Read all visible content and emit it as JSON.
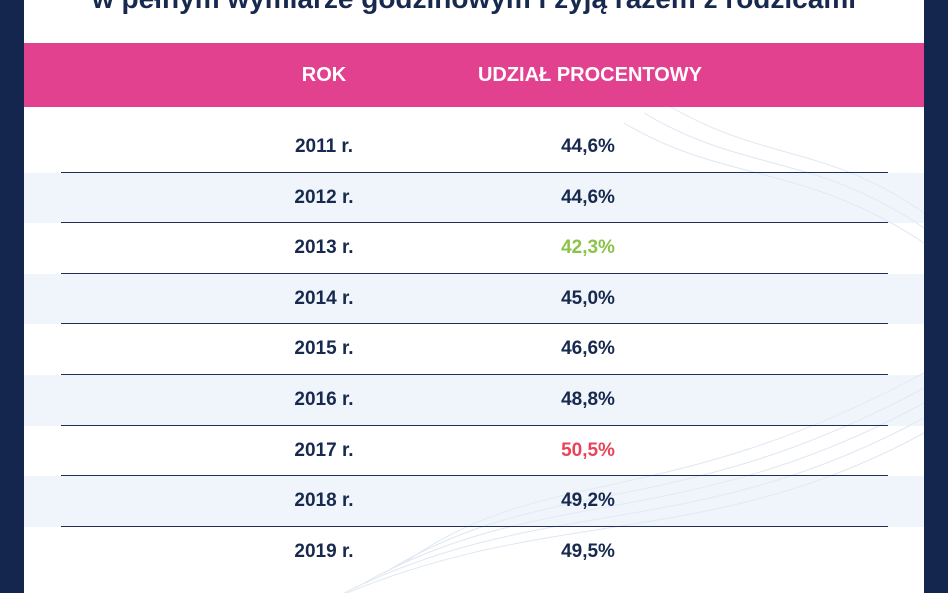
{
  "title": "w pełnym wymiarze godzinowym i żyją razem z rodzicami",
  "table": {
    "headers": {
      "year": "ROK",
      "share": "UDZIAŁ PROCENTOWY"
    },
    "rows": [
      {
        "year": "2011 r.",
        "share": "44,6%",
        "color": "#17294f"
      },
      {
        "year": "2012 r.",
        "share": "44,6%",
        "color": "#17294f"
      },
      {
        "year": "2013 r.",
        "share": "42,3%",
        "color": "#8bc34a"
      },
      {
        "year": "2014 r.",
        "share": "45,0%",
        "color": "#17294f"
      },
      {
        "year": "2015 r.",
        "share": "46,6%",
        "color": "#17294f"
      },
      {
        "year": "2016 r.",
        "share": "48,8%",
        "color": "#17294f"
      },
      {
        "year": "2017 r.",
        "share": "50,5%",
        "color": "#e94359"
      },
      {
        "year": "2018 r.",
        "share": "49,2%",
        "color": "#17294f"
      },
      {
        "year": "2019 r.",
        "share": "49,5%",
        "color": "#17294f"
      }
    ]
  },
  "colors": {
    "frame": "#14264d",
    "header_band": "#e2418f",
    "text": "#17294f",
    "lowest": "#8bc34a",
    "highest": "#e94359"
  }
}
